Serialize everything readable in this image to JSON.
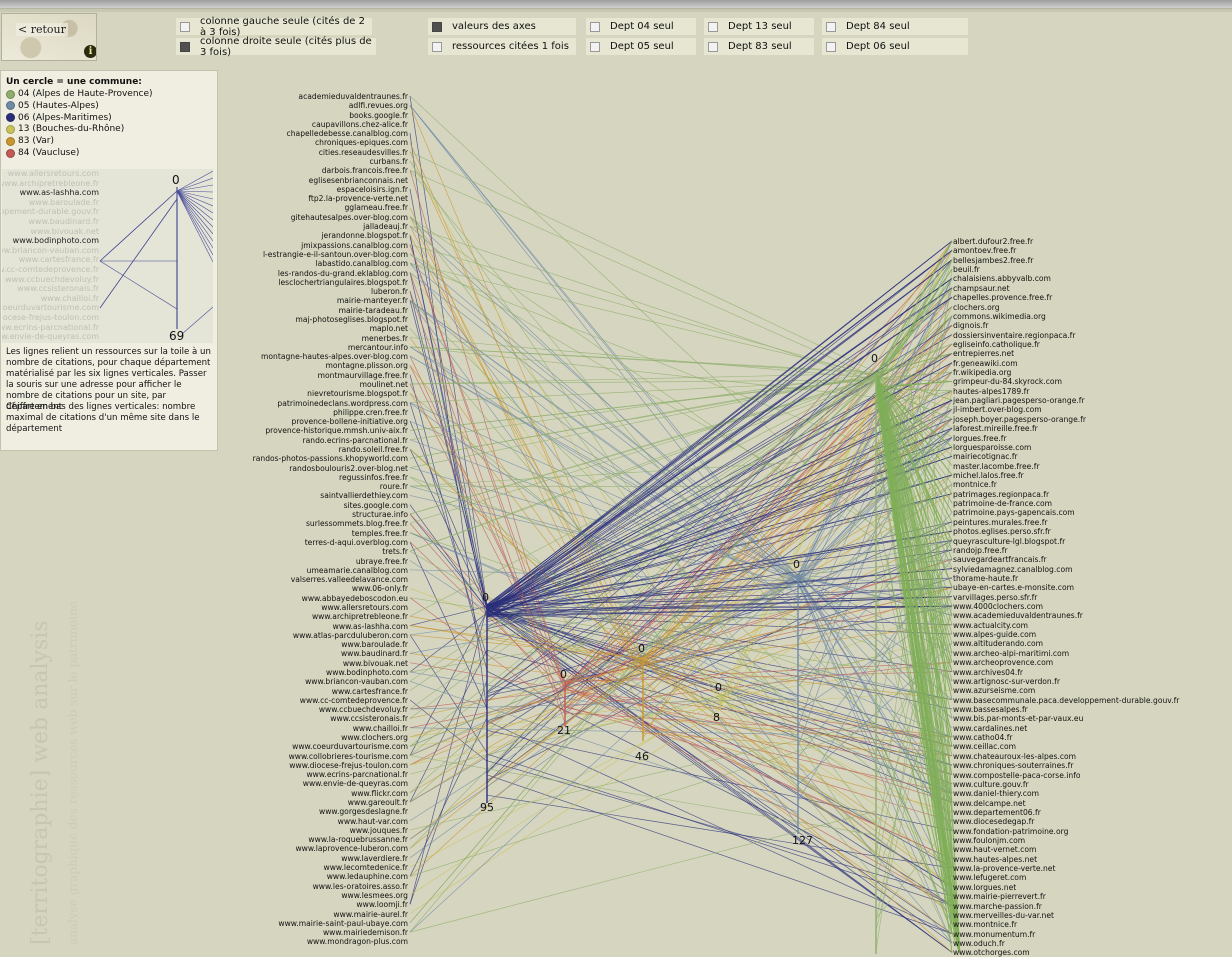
{
  "back": {
    "label": "< retour",
    "info_symbol": "i"
  },
  "options": [
    {
      "id": "left-only",
      "label": "colonne gauche seule (cités de 2 à 3 fois)",
      "checked": false
    },
    {
      "id": "right-only",
      "label": "colonne droite seule (cités plus de 3 fois)",
      "checked": true
    },
    {
      "id": "axis-values",
      "label": "valeurs des axes",
      "checked": true
    },
    {
      "id": "cited-once",
      "label": "ressources citées 1 fois",
      "checked": false
    },
    {
      "id": "dept04",
      "label": "Dept 04 seul",
      "checked": false
    },
    {
      "id": "dept05",
      "label": "Dept 05 seul",
      "checked": false
    },
    {
      "id": "dept13",
      "label": "Dept 13 seul",
      "checked": false
    },
    {
      "id": "dept83",
      "label": "Dept 83 seul",
      "checked": false
    },
    {
      "id": "dept84",
      "label": "Dept 84 seul",
      "checked": false
    },
    {
      "id": "dept06",
      "label": "Dept 06 seul",
      "checked": false
    }
  ],
  "legend": {
    "title": "Un cercle = une commune:",
    "items": [
      {
        "label": "04 (Alpes de Haute-Provence)",
        "color": "#8fae6c"
      },
      {
        "label": "05 (Hautes-Alpes)",
        "color": "#6f8aa6"
      },
      {
        "label": "06 (Alpes-Maritimes)",
        "color": "#2b2f7a"
      },
      {
        "label": "13 (Bouches-du-Rhône)",
        "color": "#c9c25a"
      },
      {
        "label": "83 (Var)",
        "color": "#c9962f"
      },
      {
        "label": "84 (Vaucluse)",
        "color": "#c05a55"
      }
    ],
    "help": "Les lignes relient un ressources sur la toile à un nombre de citations, pour chaque département matérialisé par les six lignes verticales. Passer la souris sur une adresse pour afficher le nombre de citations pour un site, par département",
    "help2": "Chiffre en bas des lignes verticales: nombre maximal de citations d'un même site dans le département"
  },
  "zoom": {
    "labels": [
      "www.allersretours.com",
      "www.archipretrebleone.fr",
      "www.as-lashha.com",
      "www.baroulade.fr",
      "veloppement-durable.gouv.fr",
      "www.baudinard.fr",
      "www.bivouak.net",
      "www.bodinphoto.com",
      "ww.briancon-vauban.com",
      "www.cartesfrance.fr",
      "w.cc-comtedeprovence.fr",
      "www.ccbuechdevoluy.fr",
      "www.ccsisteronais.fr",
      "www.chailloi.fr",
      "coeurduvartourisme.com",
      "diocese-frejus-toulon.com",
      "www.ecrins-parcnational.fr",
      "rw.envie-de-queyras.com",
      "www.flickr.com"
    ],
    "top": "0",
    "bottom": "69"
  },
  "watermark": "[territographie] web analysis",
  "watermark2": "analyse graphique des ressources web sur le patrimoine",
  "axes": [
    {
      "dept": "06",
      "top": "0",
      "bottom": "95",
      "color": "#2b2f7a"
    },
    {
      "dept": "84",
      "top": "0",
      "bottom": "21",
      "color": "#c05a55"
    },
    {
      "dept": "83",
      "top": "0",
      "bottom": "46",
      "color": "#c9962f"
    },
    {
      "dept": "13",
      "top": "0",
      "bottom": "8",
      "color": "#c9c25a"
    },
    {
      "dept": "05",
      "top": "0",
      "bottom": "127",
      "color": "#6f8aa6"
    },
    {
      "dept": "04",
      "top": "0",
      "bottom": "",
      "color": "#8fae6c"
    }
  ],
  "left_sites": [
    "academieduvaldentraunes.fr",
    "adlfi.revues.org",
    "books.google.fr",
    "caupavillons.chez-alice.fr",
    "chapelledebesse.canalblog.com",
    "chroniques-epiques.com",
    "cities.reseaudesvilles.fr",
    "curbans.fr",
    "darbois.francois.free.fr",
    "eglisesenbrianconnais.net",
    "espaceloisirs.ign.fr",
    "ftp2.la-provence-verte.net",
    "gglameau.free.fr",
    "gitehautesalpes.over-blog.com",
    "jalladeauj.fr",
    "jerandonne.blogspot.fr",
    "jmixpassions.canalblog.com",
    "l-estrangie-e-il-santoun.over-blog.com",
    "labastido.canalblog.com",
    "les-randos-du-grand.eklablog.com",
    "lesclochertriangulaires.blogspot.fr",
    "luberon.fr",
    "mairie-manteyer.fr",
    "mairie-taradeau.fr",
    "maj-photoseglises.blogspot.fr",
    "maplo.net",
    "menerbes.fr",
    "mercantour.info",
    "montagne-hautes-alpes.over-blog.com",
    "montagne.plisson.org",
    "montmaurvillage.free.fr",
    "moulinet.net",
    "nievretourisme.blogspot.fr",
    "patrimoinedeclans.wordpress.com",
    "philippe.cren.free.fr",
    "provence-bollene-initiative.org",
    "provence-historique.mmsh.univ-aix.fr",
    "rando.ecrins-parcnational.fr",
    "rando.soleil.free.fr",
    "randos-photos-passions.khopyworld.com",
    "randosboulouris2.over-blog.net",
    "regussinfos.free.fr",
    "roure.fr",
    "saintvallierdethiey.com",
    "sites.google.com",
    "structurae.info",
    "surlessommets.blog.free.fr",
    "temples.free.fr",
    "terres-d-aqui.overblog.com",
    "trets.fr",
    "ubraye.free.fr",
    "umeamarie.canalblog.com",
    "valserres.valleedelavance.com",
    "www.06-only.fr",
    "www.abbayedeboscodon.eu",
    "www.allersretours.com",
    "www.archipretrebleone.fr",
    "www.as-lashha.com",
    "www.atlas-parcduluberon.com",
    "www.baroulade.fr",
    "www.baudinard.fr",
    "www.bivouak.net",
    "www.bodinphoto.com",
    "www.briancon-vauban.com",
    "www.cartesfrance.fr",
    "www.cc-comtedeprovence.fr",
    "www.ccbuechdevoluy.fr",
    "www.ccsisteronais.fr",
    "www.chailloi.fr",
    "www.clochers.org",
    "www.coeurduvartourisme.com",
    "www.collobrieres-tourisme.com",
    "www.diocese-frejus-toulon.com",
    "www.ecrins-parcnational.fr",
    "www.envie-de-queyras.com",
    "www.flickr.com",
    "www.gareoult.fr",
    "www.gorgesdeslagne.fr",
    "www.haut-var.com",
    "www.jouques.fr",
    "www.la-roquebrussanne.fr",
    "www.laprovence-luberon.com",
    "www.laverdiere.fr",
    "www.lecomtedenice.fr",
    "www.ledauphine.com",
    "www.les-oratoires.asso.fr",
    "www.lesmees.org",
    "www.loomji.fr",
    "www.mairie-aurel.fr",
    "www.mairie-saint-paul-ubaye.com",
    "www.mairiedemison.fr",
    "www.mondragon-plus.com"
  ],
  "right_sites": [
    "albert.dufour2.free.fr",
    "amontoev.free.fr",
    "bellesjambes2.free.fr",
    "beuil.fr",
    "chalaisiens.abbyvalb.com",
    "champsaur.net",
    "chapelles.provence.free.fr",
    "clochers.org",
    "commons.wikimedia.org",
    "dignois.fr",
    "dossiersinventaire.regionpaca.fr",
    "egliseinfo.catholique.fr",
    "entrepierres.net",
    "fr.geneawiki.com",
    "fr.wikipedia.org",
    "grimpeur-du-84.skyrock.com",
    "hautes-alpes1789.fr",
    "jean.pagliari.pagesperso-orange.fr",
    "jl-imbert.over-blog.com",
    "joseph.boyer.pagesperso-orange.fr",
    "laforest.mireille.free.fr",
    "lorgues.free.fr",
    "lorguesparoisse.com",
    "mairiecotignac.fr",
    "master.lacombe.free.fr",
    "michel.lalos.free.fr",
    "montnice.fr",
    "patrimages.regionpaca.fr",
    "patrimoine-de-france.com",
    "patrimoine.pays-gapencais.com",
    "peintures.murales.free.fr",
    "photos.eglises.perso.sfr.fr",
    "queyrasculture-lgl.blogspot.fr",
    "randojp.free.fr",
    "sauvegardeartfrancais.fr",
    "sylviedamagnez.canalblog.com",
    "thorame-haute.fr",
    "ubaye-en-cartes.e-monsite.com",
    "varvillages.perso.sfr.fr",
    "www.4000clochers.com",
    "www.academieduvaldentraunes.fr",
    "www.actualcity.com",
    "www.alpes-guide.com",
    "www.altituderando.com",
    "www.archeo-alpi-maritimi.com",
    "www.archeoprovence.com",
    "www.archives04.fr",
    "www.artignosc-sur-verdon.fr",
    "www.azurseisme.com",
    "www.basecommunale.paca.developpement-durable.gouv.fr",
    "www.bassesalpes.fr",
    "www.bis.par-monts-et-par-vaux.eu",
    "www.cardalines.net",
    "www.catho04.fr",
    "www.ceillac.com",
    "www.chateauroux-les-alpes.com",
    "www.chroniques-souterraines.fr",
    "www.compostelle-paca-corse.info",
    "www.culture.gouv.fr",
    "www.daniel-thiery.com",
    "www.delcampe.net",
    "www.departement06.fr",
    "www.diocesedegap.fr",
    "www.fondation-patrimoine.org",
    "www.foulonjm.com",
    "www.haut-vernet.com",
    "www.hautes-alpes.net",
    "www.la-provence-verte.net",
    "www.lefugeret.com",
    "www.lorgues.net",
    "www.mairie-pierrevert.fr",
    "www.marche-passion.fr",
    "www.merveilles-du-var.net",
    "www.montnice.fr",
    "www.monumentum.fr",
    "www.oduch.fr",
    "www.otchorges.com"
  ]
}
